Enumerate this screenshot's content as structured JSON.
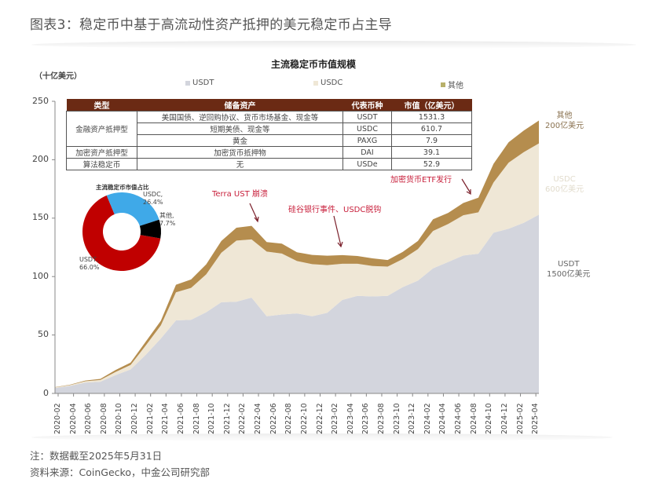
{
  "figure": {
    "title": "图表3：稳定币中基于高流动性资产抵押的美元稳定币占主导",
    "note": "注：数据截至2025年5月31日",
    "source": "资料来源：CoinGecko，中金公司研究部"
  },
  "colors": {
    "usdt": "#d3d5dd",
    "usdc": "#efe7d6",
    "other": "#b58d4e",
    "table_header": "#6b2a14",
    "donut_usdt": "#c00000",
    "donut_usdc": "#3fa9e8",
    "donut_other": "#000000",
    "annotation": "#c8203c"
  },
  "chart_data": [
    {
      "type": "area",
      "stacked": true,
      "title": "主流稳定币市值规模",
      "ylabel": "（十亿美元）",
      "xlabel": "",
      "ylim": [
        0,
        250
      ],
      "yticks": [
        0,
        50,
        100,
        150,
        200,
        250
      ],
      "grid": false,
      "legend_position": "top",
      "legend": [
        "USDT",
        "USDC",
        "其他"
      ],
      "x": [
        "2020-02",
        "2020-04",
        "2020-06",
        "2020-08",
        "2020-10",
        "2020-12",
        "2021-02",
        "2021-04",
        "2021-06",
        "2021-08",
        "2021-10",
        "2021-12",
        "2022-02",
        "2022-04",
        "2022-06",
        "2022-08",
        "2022-10",
        "2022-12",
        "2023-02",
        "2023-04",
        "2023-06",
        "2023-08",
        "2023-10",
        "2023-12",
        "2024-02",
        "2024-04",
        "2024-06",
        "2024-08",
        "2024-10",
        "2024-12",
        "2025-02",
        "2025-04",
        "2025-05"
      ],
      "series": [
        {
          "name": "USDT",
          "values": [
            4.6,
            6.4,
            9.2,
            10.0,
            15.6,
            20.5,
            33.0,
            47.0,
            62.5,
            63.0,
            69.5,
            78.0,
            78.5,
            82.0,
            66.0,
            67.5,
            68.5,
            66.0,
            69.0,
            80.0,
            83.5,
            83.0,
            83.5,
            91.0,
            96.5,
            107.0,
            112.5,
            118.0,
            119.5,
            137.5,
            141.0,
            146.0,
            153.0
          ]
        },
        {
          "name": "USDC",
          "values": [
            0.5,
            0.7,
            1.2,
            1.5,
            2.7,
            3.9,
            8.0,
            11.2,
            24.0,
            27.3,
            32.4,
            42.4,
            52.3,
            49.8,
            55.4,
            52.2,
            44.8,
            44.6,
            40.8,
            31.0,
            27.5,
            26.0,
            25.0,
            24.0,
            27.0,
            32.0,
            32.5,
            34.5,
            35.5,
            43.0,
            56.5,
            60.5,
            61.0
          ]
        },
        {
          "name": "其他",
          "values": [
            0.3,
            0.4,
            0.6,
            0.9,
            1.7,
            2.0,
            3.3,
            4.0,
            6.5,
            7.2,
            8.6,
            10.1,
            11.0,
            11.6,
            8.1,
            8.5,
            7.5,
            7.9,
            8.1,
            7.4,
            6.6,
            6.6,
            5.7,
            6.1,
            7.0,
            10.0,
            9.5,
            10.5,
            12.5,
            16.0,
            17.5,
            18.5,
            19.5
          ]
        }
      ],
      "annotations": [
        {
          "text": "Terra UST 崩溃",
          "x": "2022-05"
        },
        {
          "text": "硅谷银行事件、USDC脱钩",
          "x": "2023-03"
        },
        {
          "text": "加密货币ETF发行",
          "x": "2024-01"
        }
      ],
      "end_labels": [
        {
          "series": "其他",
          "line1": "其他",
          "line2": "200亿美元"
        },
        {
          "series": "USDC",
          "line1": "USDC",
          "line2": "600亿美元"
        },
        {
          "series": "USDT",
          "line1": "USDT",
          "line2": "1500亿美元"
        }
      ]
    },
    {
      "type": "pie",
      "donut": true,
      "title": "主流稳定币市值占比",
      "categories": [
        "USDT",
        "USDC",
        "其他"
      ],
      "values": [
        66.0,
        26.4,
        7.7
      ],
      "labels": [
        "USDT,\n66.0%",
        "USDC,\n26.4%",
        "其他,\n7.7%"
      ]
    },
    {
      "type": "table",
      "columns": [
        "类型",
        "储备资产",
        "代表币种",
        "市值（亿美元）"
      ],
      "rows": [
        {
          "type": "金融资产抵押型",
          "reserve": "美国国债、逆回购协议、货币市场基金、现金等",
          "coin": "USDT",
          "cap": "1531.3"
        },
        {
          "type": "金融资产抵押型",
          "reserve": "短期美债、现金等",
          "coin": "USDC",
          "cap": "610.7"
        },
        {
          "type": "金融资产抵押型",
          "reserve": "黄金",
          "coin": "PAXG",
          "cap": "7.9"
        },
        {
          "type": "加密资产抵押型",
          "reserve": "加密货币抵押物",
          "coin": "DAI",
          "cap": "39.1"
        },
        {
          "type": "算法稳定币",
          "reserve": "无",
          "coin": "USDe",
          "cap": "52.9"
        }
      ]
    }
  ],
  "ui": {
    "legend": {
      "usdt": "USDT",
      "usdc": "USDC",
      "other": "其他"
    },
    "unit": "（十亿美元）",
    "chart_title": "主流稳定币市值规模",
    "donut_title": "主流稳定币市值占比",
    "donut_labels": {
      "usdc_name": "USDC,",
      "usdc_pct": "26.4%",
      "other_name": "其他,",
      "other_pct": "7.7%",
      "usdt_name": "USDT,",
      "usdt_pct": "66.0%"
    },
    "table": {
      "headers": [
        "类型",
        "储备资产",
        "代表币种",
        "市值（亿美元）"
      ],
      "group_financial": "金融资产抵押型",
      "group_crypto": "加密资产抵押型",
      "group_algo": "算法稳定币",
      "r1": {
        "reserve": "美国国债、逆回购协议、货币市场基金、现金等",
        "coin": "USDT",
        "cap": "1531.3"
      },
      "r2": {
        "reserve": "短期美债、现金等",
        "coin": "USDC",
        "cap": "610.7"
      },
      "r3": {
        "reserve": "黄金",
        "coin": "PAXG",
        "cap": "7.9"
      },
      "r4": {
        "reserve": "加密货币抵押物",
        "coin": "DAI",
        "cap": "39.1"
      },
      "r5": {
        "reserve": "无",
        "coin": "USDe",
        "cap": "52.9"
      }
    },
    "annotations": {
      "terra": "Terra UST 崩溃",
      "svb": "硅谷银行事件、USDC脱钩",
      "etf": "加密货币ETF发行"
    },
    "end_labels": {
      "other_1": "其他",
      "other_2": "200亿美元",
      "usdc_1": "USDC",
      "usdc_2": "600亿美元",
      "usdt_1": "USDT",
      "usdt_2": "1500亿美元"
    },
    "yticks": [
      "250",
      "200",
      "150",
      "100",
      "50",
      "0"
    ],
    "xticks": [
      "2020-02",
      "2020-04",
      "2020-06",
      "2020-08",
      "2020-10",
      "2020-12",
      "2021-02",
      "2021-04",
      "2021-06",
      "2021-08",
      "2021-10",
      "2021-12",
      "2022-02",
      "2022-04",
      "2022-06",
      "2022-08",
      "2022-10",
      "2022-12",
      "2023-02",
      "2023-04",
      "2023-06",
      "2023-08",
      "2023-10",
      "2023-12",
      "2024-02",
      "2024-04",
      "2024-06",
      "2024-08",
      "2024-10",
      "2024-12",
      "2025-02",
      "2025-04"
    ]
  }
}
